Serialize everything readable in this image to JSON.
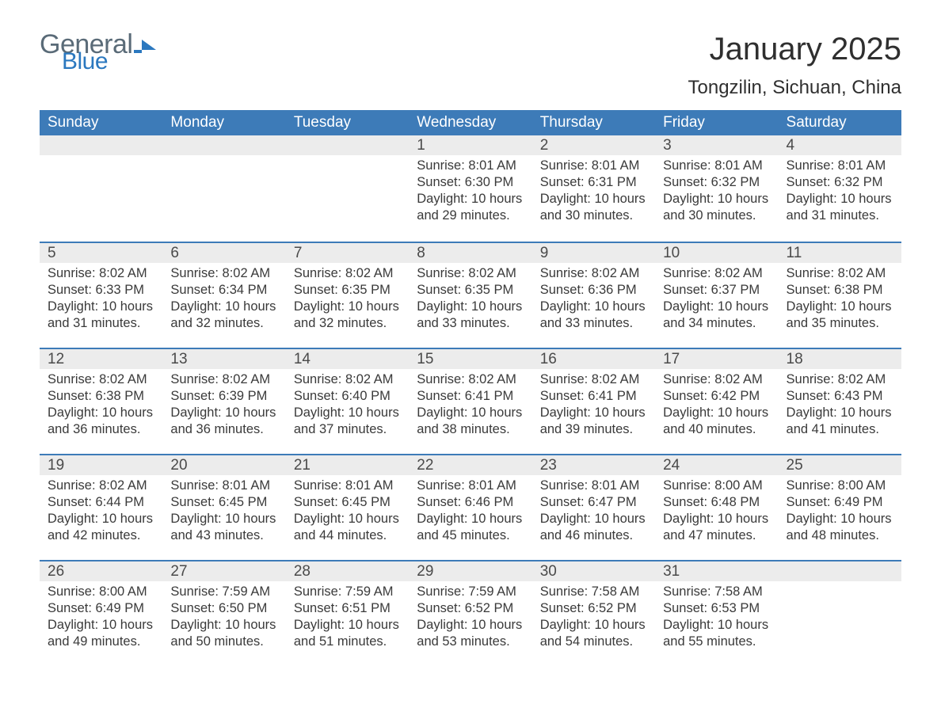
{
  "brand": {
    "part1": "General",
    "part2": "Blue"
  },
  "title": "January 2025",
  "location": "Tongzilin, Sichuan, China",
  "colors": {
    "header_bg": "#3d7bb8",
    "header_text": "#ffffff",
    "daynum_bg": "#ececec",
    "rule": "#3d7bb8",
    "body_text": "#3a3a3a",
    "logo_gray": "#5a6b78",
    "logo_blue": "#2b78bf"
  },
  "typography": {
    "title_fontsize": 40,
    "location_fontsize": 24,
    "header_fontsize": 19,
    "daynum_fontsize": 19,
    "body_fontsize": 16.5
  },
  "weekdays": [
    "Sunday",
    "Monday",
    "Tuesday",
    "Wednesday",
    "Thursday",
    "Friday",
    "Saturday"
  ],
  "weeks": [
    [
      null,
      null,
      null,
      {
        "n": "1",
        "sunrise": "8:01 AM",
        "sunset": "6:30 PM",
        "dl_h": "10",
        "dl_m": "29"
      },
      {
        "n": "2",
        "sunrise": "8:01 AM",
        "sunset": "6:31 PM",
        "dl_h": "10",
        "dl_m": "30"
      },
      {
        "n": "3",
        "sunrise": "8:01 AM",
        "sunset": "6:32 PM",
        "dl_h": "10",
        "dl_m": "30"
      },
      {
        "n": "4",
        "sunrise": "8:01 AM",
        "sunset": "6:32 PM",
        "dl_h": "10",
        "dl_m": "31"
      }
    ],
    [
      {
        "n": "5",
        "sunrise": "8:02 AM",
        "sunset": "6:33 PM",
        "dl_h": "10",
        "dl_m": "31"
      },
      {
        "n": "6",
        "sunrise": "8:02 AM",
        "sunset": "6:34 PM",
        "dl_h": "10",
        "dl_m": "32"
      },
      {
        "n": "7",
        "sunrise": "8:02 AM",
        "sunset": "6:35 PM",
        "dl_h": "10",
        "dl_m": "32"
      },
      {
        "n": "8",
        "sunrise": "8:02 AM",
        "sunset": "6:35 PM",
        "dl_h": "10",
        "dl_m": "33"
      },
      {
        "n": "9",
        "sunrise": "8:02 AM",
        "sunset": "6:36 PM",
        "dl_h": "10",
        "dl_m": "33"
      },
      {
        "n": "10",
        "sunrise": "8:02 AM",
        "sunset": "6:37 PM",
        "dl_h": "10",
        "dl_m": "34"
      },
      {
        "n": "11",
        "sunrise": "8:02 AM",
        "sunset": "6:38 PM",
        "dl_h": "10",
        "dl_m": "35"
      }
    ],
    [
      {
        "n": "12",
        "sunrise": "8:02 AM",
        "sunset": "6:38 PM",
        "dl_h": "10",
        "dl_m": "36"
      },
      {
        "n": "13",
        "sunrise": "8:02 AM",
        "sunset": "6:39 PM",
        "dl_h": "10",
        "dl_m": "36"
      },
      {
        "n": "14",
        "sunrise": "8:02 AM",
        "sunset": "6:40 PM",
        "dl_h": "10",
        "dl_m": "37"
      },
      {
        "n": "15",
        "sunrise": "8:02 AM",
        "sunset": "6:41 PM",
        "dl_h": "10",
        "dl_m": "38"
      },
      {
        "n": "16",
        "sunrise": "8:02 AM",
        "sunset": "6:41 PM",
        "dl_h": "10",
        "dl_m": "39"
      },
      {
        "n": "17",
        "sunrise": "8:02 AM",
        "sunset": "6:42 PM",
        "dl_h": "10",
        "dl_m": "40"
      },
      {
        "n": "18",
        "sunrise": "8:02 AM",
        "sunset": "6:43 PM",
        "dl_h": "10",
        "dl_m": "41"
      }
    ],
    [
      {
        "n": "19",
        "sunrise": "8:02 AM",
        "sunset": "6:44 PM",
        "dl_h": "10",
        "dl_m": "42"
      },
      {
        "n": "20",
        "sunrise": "8:01 AM",
        "sunset": "6:45 PM",
        "dl_h": "10",
        "dl_m": "43"
      },
      {
        "n": "21",
        "sunrise": "8:01 AM",
        "sunset": "6:45 PM",
        "dl_h": "10",
        "dl_m": "44"
      },
      {
        "n": "22",
        "sunrise": "8:01 AM",
        "sunset": "6:46 PM",
        "dl_h": "10",
        "dl_m": "45"
      },
      {
        "n": "23",
        "sunrise": "8:01 AM",
        "sunset": "6:47 PM",
        "dl_h": "10",
        "dl_m": "46"
      },
      {
        "n": "24",
        "sunrise": "8:00 AM",
        "sunset": "6:48 PM",
        "dl_h": "10",
        "dl_m": "47"
      },
      {
        "n": "25",
        "sunrise": "8:00 AM",
        "sunset": "6:49 PM",
        "dl_h": "10",
        "dl_m": "48"
      }
    ],
    [
      {
        "n": "26",
        "sunrise": "8:00 AM",
        "sunset": "6:49 PM",
        "dl_h": "10",
        "dl_m": "49"
      },
      {
        "n": "27",
        "sunrise": "7:59 AM",
        "sunset": "6:50 PM",
        "dl_h": "10",
        "dl_m": "50"
      },
      {
        "n": "28",
        "sunrise": "7:59 AM",
        "sunset": "6:51 PM",
        "dl_h": "10",
        "dl_m": "51"
      },
      {
        "n": "29",
        "sunrise": "7:59 AM",
        "sunset": "6:52 PM",
        "dl_h": "10",
        "dl_m": "53"
      },
      {
        "n": "30",
        "sunrise": "7:58 AM",
        "sunset": "6:52 PM",
        "dl_h": "10",
        "dl_m": "54"
      },
      {
        "n": "31",
        "sunrise": "7:58 AM",
        "sunset": "6:53 PM",
        "dl_h": "10",
        "dl_m": "55"
      },
      null
    ]
  ],
  "labels": {
    "sunrise": "Sunrise:",
    "sunset": "Sunset:",
    "daylight": "Daylight:",
    "hours": "hours",
    "and": "and",
    "minutes": "minutes."
  }
}
